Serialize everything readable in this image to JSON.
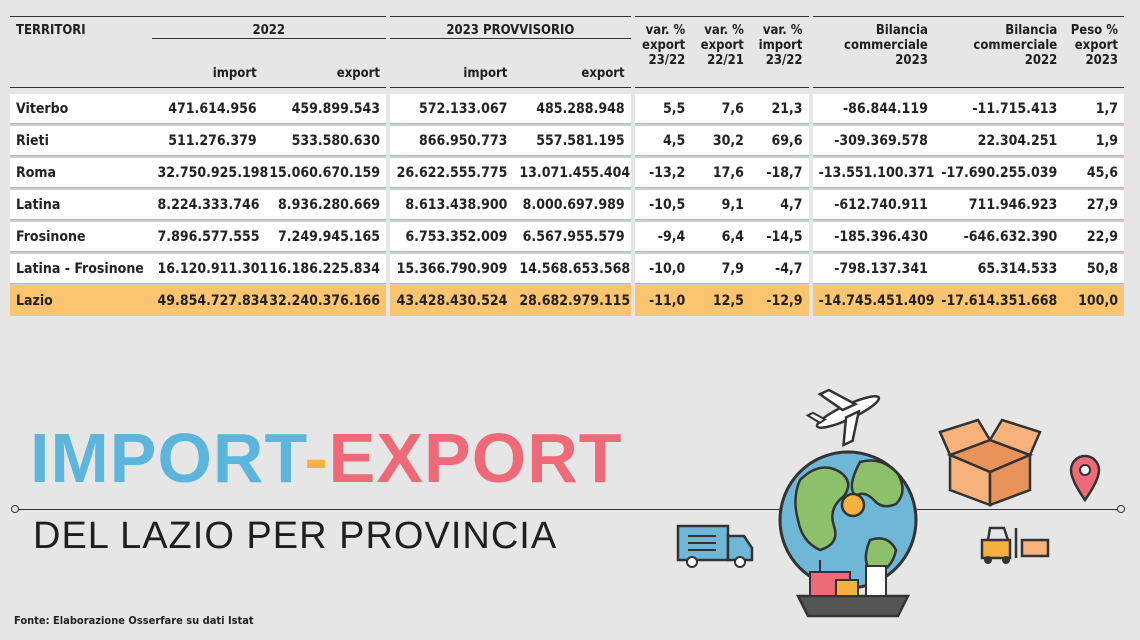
{
  "headers": {
    "territori": "TERRITORI",
    "group_2022": "2022",
    "group_2023": "2023 PROVVISORIO",
    "import": "import",
    "export": "export",
    "var_export": [
      "var. %",
      "export",
      "23/22"
    ],
    "var_export_21": [
      "var. %",
      "export",
      "22/21"
    ],
    "var_import": [
      "var. %",
      "import",
      "23/22"
    ],
    "bilancia_2023": [
      "Bilancia",
      "commerciale",
      "2023"
    ],
    "bilancia_2022": [
      "Bilancia",
      "commerciale",
      "2022"
    ],
    "peso": [
      "Peso %",
      "export",
      "2023"
    ]
  },
  "chart_data": {
    "type": "table",
    "columns": [
      "TERRITORI",
      "2022 import",
      "2022 export",
      "2023 PROVVISORIO import",
      "2023 PROVVISORIO export",
      "var. % export 23/22",
      "var. % export 22/21",
      "var. % import 23/22",
      "Bilancia commerciale 2023",
      "Bilancia commerciale 2022",
      "Peso % export 2023"
    ],
    "rows": [
      [
        "Viterbo",
        "471.614.956",
        "459.899.543",
        "572.133.067",
        "485.288.948",
        "5,5",
        "7,6",
        "21,3",
        "-86.844.119",
        "-11.715.413",
        "1,7"
      ],
      [
        "Rieti",
        "511.276.379",
        "533.580.630",
        "866.950.773",
        "557.581.195",
        "4,5",
        "30,2",
        "69,6",
        "-309.369.578",
        "22.304.251",
        "1,9"
      ],
      [
        "Roma",
        "32.750.925.198",
        "15.060.670.159",
        "26.622.555.775",
        "13.071.455.404",
        "-13,2",
        "17,6",
        "-18,7",
        "-13.551.100.371",
        "-17.690.255.039",
        "45,6"
      ],
      [
        "Latina",
        "8.224.333.746",
        "8.936.280.669",
        "8.613.438.900",
        "8.000.697.989",
        "-10,5",
        "9,1",
        "4,7",
        "-612.740.911",
        "711.946.923",
        "27,9"
      ],
      [
        "Frosinone",
        "7.896.577.555",
        "7.249.945.165",
        "6.753.352.009",
        "6.567.955.579",
        "-9,4",
        "6,4",
        "-14,5",
        "-185.396.430",
        "-646.632.390",
        "22,9"
      ],
      [
        "Latina - Frosinone",
        "16.120.911.301",
        "16.186.225.834",
        "15.366.790.909",
        "14.568.653.568",
        "-10,0",
        "7,9",
        "-4,7",
        "-798.137.341",
        "65.314.533",
        "50,8"
      ]
    ],
    "total": [
      "Lazio",
      "49.854.727.834",
      "32.240.376.166",
      "43.428.430.524",
      "28.682.979.115",
      "-11,0",
      "12,5",
      "-12,9",
      "-14.745.451.409",
      "-17.614.351.668",
      "100,0"
    ]
  },
  "title": {
    "part1": "IMPORT",
    "dash": "-",
    "part2": "EXPORT",
    "subtitle": "DEL LAZIO PER PROVINCIA"
  },
  "source": "Fonte: Elaborazione Osserfare su dati Istat",
  "colors": {
    "background": "#e6e6e6",
    "total_row": "#fbc56f",
    "import_blue": "#5bb5dc",
    "export_red": "#ee6a78",
    "dash_orange": "#f6b13f"
  },
  "icons": [
    "airplane-icon",
    "globe-icon",
    "box-icon",
    "location-pin-icon",
    "truck-icon",
    "forklift-icon",
    "ship-icon"
  ]
}
